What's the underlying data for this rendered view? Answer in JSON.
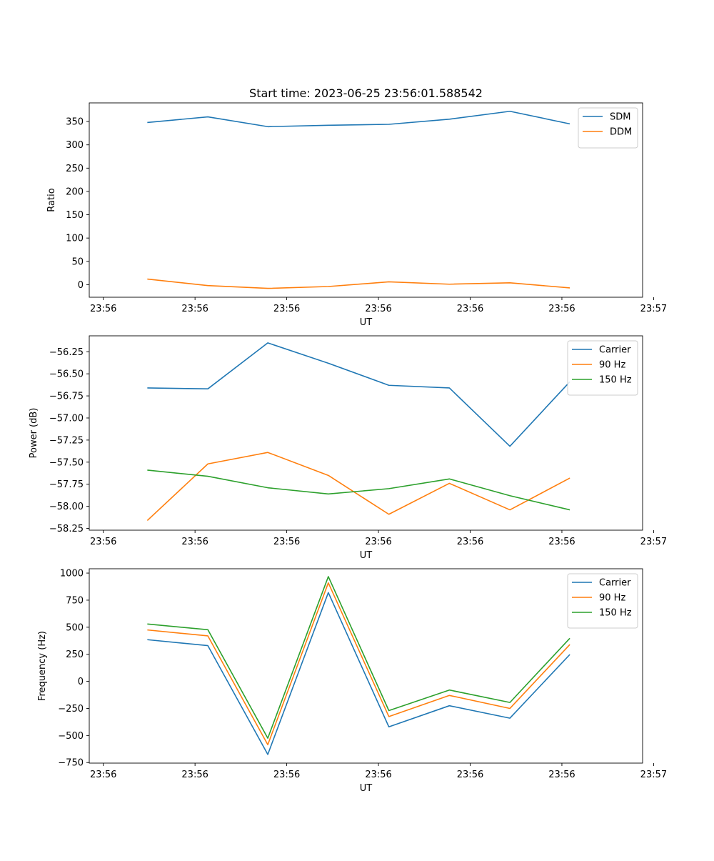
{
  "figure": {
    "title": "Start time: 2023-06-25 23:56:01.588542"
  },
  "colors": {
    "blue": "#1f77b4",
    "orange": "#ff7f0e",
    "green": "#2ca02c"
  },
  "chart_data": [
    {
      "type": "line",
      "xlabel": "UT",
      "ylabel": "Ratio",
      "xlim": [
        -0.23,
        8.82
      ],
      "ylim": [
        -27,
        390
      ],
      "xticks": [
        0,
        1.5,
        3,
        4.5,
        6,
        7.5,
        9
      ],
      "xtick_labels": [
        "23:56",
        "23:56",
        "23:56",
        "23:56",
        "23:56",
        "23:56",
        "23:57"
      ],
      "yticks": [
        0,
        50,
        100,
        150,
        200,
        250,
        300,
        350
      ],
      "ytick_labels": [
        "0",
        "50",
        "100",
        "150",
        "200",
        "250",
        "300",
        "350"
      ],
      "x": [
        0.72,
        1.71,
        2.69,
        3.68,
        4.67,
        5.66,
        6.65,
        7.63
      ],
      "legend": "top-right",
      "series": [
        {
          "name": "SDM",
          "color": "#1f77b4",
          "values": [
            348,
            360,
            339,
            342,
            344,
            355,
            372,
            345
          ]
        },
        {
          "name": "DDM",
          "color": "#ff7f0e",
          "values": [
            12,
            -2,
            -8,
            -4,
            6,
            1,
            4,
            -7
          ]
        }
      ]
    },
    {
      "type": "line",
      "xlabel": "UT",
      "ylabel": "Power (dB)",
      "xlim": [
        -0.23,
        8.82
      ],
      "ylim": [
        -58.27,
        -56.07
      ],
      "xticks": [
        0,
        1.5,
        3,
        4.5,
        6,
        7.5,
        9
      ],
      "xtick_labels": [
        "23:56",
        "23:56",
        "23:56",
        "23:56",
        "23:56",
        "23:56",
        "23:57"
      ],
      "yticks": [
        -58.25,
        -58.0,
        -57.75,
        -57.5,
        -57.25,
        -57.0,
        -56.75,
        -56.5,
        -56.25
      ],
      "ytick_labels": [
        "−58.25",
        "−58.00",
        "−57.75",
        "−57.50",
        "−57.25",
        "−57.00",
        "−56.75",
        "−56.50",
        "−56.25"
      ],
      "x": [
        0.72,
        1.71,
        2.69,
        3.68,
        4.67,
        5.66,
        6.65,
        7.63
      ],
      "legend": "top-right",
      "series": [
        {
          "name": "Carrier",
          "color": "#1f77b4",
          "values": [
            -56.66,
            -56.67,
            -56.15,
            -56.38,
            -56.63,
            -56.66,
            -57.32,
            -56.59
          ]
        },
        {
          "name": "90 Hz",
          "color": "#ff7f0e",
          "values": [
            -58.16,
            -57.52,
            -57.39,
            -57.65,
            -58.09,
            -57.74,
            -58.04,
            -57.68
          ]
        },
        {
          "name": "150 Hz",
          "color": "#2ca02c",
          "values": [
            -57.59,
            -57.66,
            -57.79,
            -57.86,
            -57.8,
            -57.69,
            -57.88,
            -58.04
          ]
        }
      ]
    },
    {
      "type": "line",
      "xlabel": "UT",
      "ylabel": "Frequency (Hz)",
      "xlim": [
        -0.23,
        8.82
      ],
      "ylim": [
        -755,
        1040
      ],
      "xticks": [
        0,
        1.5,
        3,
        4.5,
        6,
        7.5,
        9
      ],
      "xtick_labels": [
        "23:56",
        "23:56",
        "23:56",
        "23:56",
        "23:56",
        "23:56",
        "23:57"
      ],
      "yticks": [
        -750,
        -500,
        -250,
        0,
        250,
        500,
        750,
        1000
      ],
      "ytick_labels": [
        "−750",
        "−500",
        "−250",
        "0",
        "250",
        "500",
        "750",
        "1000"
      ],
      "x": [
        0.72,
        1.71,
        2.69,
        3.68,
        4.67,
        5.66,
        6.65,
        7.63
      ],
      "legend": "top-right",
      "series": [
        {
          "name": "Carrier",
          "color": "#1f77b4",
          "values": [
            385,
            330,
            -675,
            820,
            -420,
            -225,
            -340,
            248
          ]
        },
        {
          "name": "90 Hz",
          "color": "#ff7f0e",
          "values": [
            475,
            420,
            -585,
            910,
            -325,
            -130,
            -250,
            340
          ]
        },
        {
          "name": "150 Hz",
          "color": "#2ca02c",
          "values": [
            530,
            477,
            -525,
            968,
            -270,
            -80,
            -195,
            398
          ]
        }
      ]
    }
  ]
}
